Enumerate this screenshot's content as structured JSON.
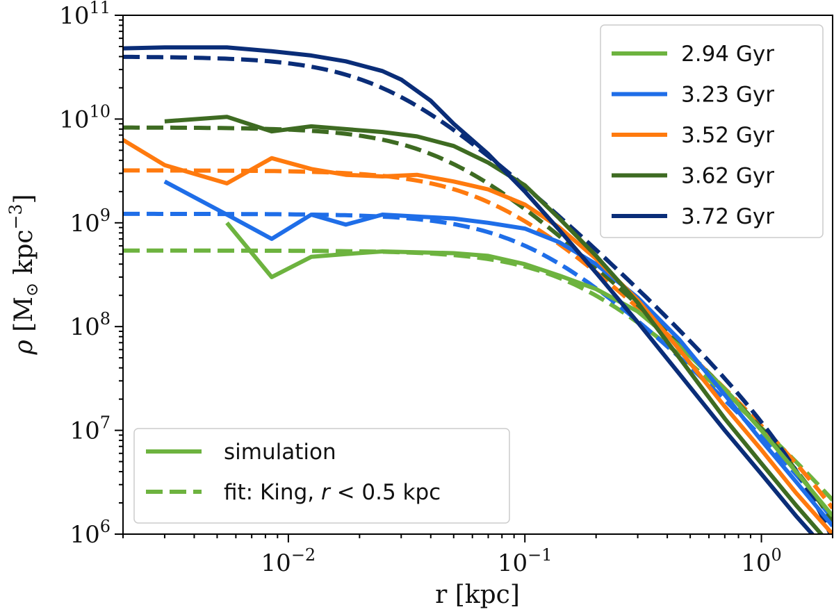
{
  "chart_data": {
    "type": "line",
    "title": "",
    "xlabel": "r [kpc]",
    "ylabel_parts": {
      "rho": "ρ",
      "open": " [M",
      "sun": "⊙",
      "unit": " kpc",
      "exp": "−3",
      "close": "]"
    },
    "xscale": "log",
    "yscale": "log",
    "xlim": [
      0.002,
      2.0
    ],
    "ylim": [
      1000000.0,
      100000000000.0
    ],
    "x_ticks": [
      {
        "value": 0.01,
        "base": "10",
        "exp": "−2"
      },
      {
        "value": 0.1,
        "base": "10",
        "exp": "−1"
      },
      {
        "value": 1,
        "base": "10",
        "exp": "0"
      }
    ],
    "y_ticks": [
      {
        "value": 1000000.0,
        "base": "10",
        "exp": "6"
      },
      {
        "value": 10000000.0,
        "base": "10",
        "exp": "7"
      },
      {
        "value": 100000000.0,
        "base": "10",
        "exp": "8"
      },
      {
        "value": 1000000000.0,
        "base": "10",
        "exp": "9"
      },
      {
        "value": 10000000000.0,
        "base": "10",
        "exp": "10"
      },
      {
        "value": 100000000000.0,
        "base": "10",
        "exp": "11"
      }
    ],
    "grid": false,
    "series": [
      {
        "name": "2.94 Gyr",
        "color": "#6db33f",
        "simulation": {
          "x": [
            0.0055,
            0.0085,
            0.0125,
            0.0175,
            0.025,
            0.035,
            0.05,
            0.07,
            0.1,
            0.14,
            0.2,
            0.3,
            0.45,
            0.7,
            1.0,
            1.4,
            2.0
          ],
          "y": [
            1000000000.0,
            300000000.0,
            470000000.0,
            500000000.0,
            530000000.0,
            520000000.0,
            510000000.0,
            480000000.0,
            400000000.0,
            310000000.0,
            230000000.0,
            140000000.0,
            65000000.0,
            25000000.0,
            10000000.0,
            4000000.0,
            1500000.0
          ]
        },
        "fit": {
          "rho0": 540000000.0,
          "rc": 0.155,
          "rt": 10.0
        }
      },
      {
        "name": "3.23 Gyr",
        "color": "#1f6ee8",
        "simulation": {
          "x": [
            0.003,
            0.0055,
            0.0085,
            0.0125,
            0.0175,
            0.025,
            0.035,
            0.05,
            0.07,
            0.1,
            0.14,
            0.2,
            0.3,
            0.45,
            0.7,
            1.0,
            1.4,
            2.0
          ],
          "y": [
            2500000000.0,
            1200000000.0,
            700000000.0,
            1200000000.0,
            960000000.0,
            1200000000.0,
            1150000000.0,
            1100000000.0,
            1000000000.0,
            880000000.0,
            650000000.0,
            400000000.0,
            190000000.0,
            75000000.0,
            22000000.0,
            8000000.0,
            3200000.0,
            1200000.0
          ]
        },
        "fit": {
          "rho0": 1220000000.0,
          "rc": 0.1,
          "rt": 6.0
        }
      },
      {
        "name": "3.52 Gyr",
        "color": "#ff7a0e",
        "simulation": {
          "x": [
            0.002,
            0.003,
            0.0055,
            0.0085,
            0.0125,
            0.0175,
            0.025,
            0.035,
            0.05,
            0.07,
            0.1,
            0.14,
            0.2,
            0.3,
            0.45,
            0.7,
            1.0,
            1.4,
            2.0
          ],
          "y": [
            6300000000.0,
            3600000000.0,
            2400000000.0,
            4200000000.0,
            3300000000.0,
            2900000000.0,
            2800000000.0,
            2900000000.0,
            2500000000.0,
            2100000000.0,
            1500000000.0,
            900000000.0,
            450000000.0,
            180000000.0,
            60000000.0,
            17000000.0,
            6500000.0,
            2500000.0,
            1000000.0
          ]
        },
        "fit": {
          "rho0": 3200000000.0,
          "rc": 0.07,
          "rt": 6.0
        }
      },
      {
        "name": "3.62 Gyr",
        "color": "#3e6b22",
        "simulation": {
          "x": [
            0.003,
            0.0055,
            0.0085,
            0.0125,
            0.0175,
            0.025,
            0.035,
            0.05,
            0.07,
            0.1,
            0.14,
            0.2,
            0.3,
            0.45,
            0.7,
            1.0,
            1.4,
            2.0
          ],
          "y": [
            9500000000.0,
            10500000000.0,
            7600000000.0,
            8500000000.0,
            8000000000.0,
            7500000000.0,
            6800000000.0,
            5500000000.0,
            3800000000.0,
            2300000000.0,
            1100000000.0,
            480000000.0,
            170000000.0,
            50000000.0,
            13000000.0,
            4800000.0,
            1900000.0,
            750000.0
          ]
        },
        "fit": {
          "rho0": 8300000000.0,
          "rc": 0.045,
          "rt": 4.5
        }
      },
      {
        "name": "3.72 Gyr",
        "color": "#0a2d78",
        "simulation": {
          "x": [
            0.002,
            0.003,
            0.0055,
            0.0085,
            0.0125,
            0.0175,
            0.025,
            0.03,
            0.04,
            0.05,
            0.07,
            0.1,
            0.14,
            0.2,
            0.3,
            0.45,
            0.7,
            1.0,
            1.4,
            2.0
          ],
          "y": [
            48000000000.0,
            49000000000.0,
            49000000000.0,
            45000000000.0,
            41000000000.0,
            36000000000.0,
            29000000000.0,
            24000000000.0,
            15000000000.0,
            9000000000.0,
            4600000000.0,
            2000000000.0,
            850000000.0,
            330000000.0,
            110000000.0,
            35000000.0,
            10000000.0,
            3800000.0,
            1500000.0,
            600000.0
          ]
        },
        "fit": {
          "rho0": 40000000000.0,
          "rc": 0.025,
          "rt": 3.2
        }
      }
    ],
    "legend_series": {
      "placement": "upper right"
    },
    "legend_style": {
      "placement": "lower left",
      "entries": [
        {
          "label": "simulation",
          "style": "solid",
          "color": "#6db33f"
        },
        {
          "label_prefix": "fit: King, ",
          "label_var": "r",
          "label_suffix": " < 0.5 kpc",
          "style": "dashed",
          "color": "#6db33f"
        }
      ]
    }
  }
}
